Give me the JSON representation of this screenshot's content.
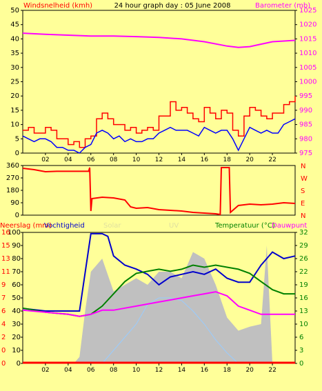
{
  "page_title": "24 hour graph day : 05 June 2008",
  "colors": {
    "background": "#FFFF99",
    "frame": "#000000",
    "wind_label": "#FF0000",
    "barometer": "#FF00FF",
    "wind_gust": "#FF0000",
    "wind_avg": "#0000FF",
    "wind_dir": "#FF0000",
    "solar_fill": "#C0C0C0",
    "uv": "#99CCFF",
    "humidity": "#0000CC",
    "temperature": "#008000",
    "dewpoint": "#FF00FF",
    "rain": "#FF0000",
    "temp_axis": "#008000",
    "humidity_label": "#0000CC"
  },
  "chart_data": [
    {
      "id": "wind-barometer",
      "type": "line",
      "title": "24 hour graph day : 05 June 2008",
      "left_axis_label": "Windsnelheid (kmh)",
      "right_axis_label": "Barometer (mb)",
      "x_tick_labels": [
        "02",
        "04",
        "06",
        "08",
        "10",
        "12",
        "14",
        "16",
        "18",
        "20",
        "22"
      ],
      "left_ylim": [
        0,
        50
      ],
      "left_ticks": [
        "0",
        "5",
        "10",
        "15",
        "20",
        "25",
        "30",
        "35",
        "40",
        "45",
        "50"
      ],
      "right_ylim": [
        975,
        1025
      ],
      "right_ticks": [
        "975",
        "980",
        "985",
        "990",
        "995",
        "1000",
        "1005",
        "1010",
        "1015",
        "1020",
        "1025"
      ],
      "series": [
        {
          "name": "Barometer (mb)",
          "axis": "right",
          "hours": [
            0,
            2,
            4,
            6,
            8,
            10,
            12,
            14,
            16,
            18,
            19,
            20,
            22,
            24
          ],
          "values": [
            1017,
            1016.6,
            1016.3,
            1016,
            1016,
            1015.8,
            1015.5,
            1015,
            1014,
            1012.5,
            1012,
            1012.3,
            1014,
            1014.5
          ]
        },
        {
          "name": "wind gust",
          "axis": "left",
          "hours": [
            0,
            0.5,
            1,
            1.5,
            2,
            2.5,
            3,
            3.5,
            4,
            4.5,
            5,
            5.5,
            6,
            6.5,
            7,
            7.5,
            8,
            8.5,
            9,
            9.5,
            10,
            10.5,
            11,
            11.5,
            12,
            12.5,
            13,
            13.5,
            14,
            14.5,
            15,
            15.5,
            16,
            16.5,
            17,
            17.5,
            18,
            18.5,
            19,
            19.5,
            20,
            20.5,
            21,
            21.5,
            22,
            22.5,
            23,
            23.5,
            24
          ],
          "values": [
            8,
            9,
            7,
            7,
            9,
            8,
            5,
            5,
            3,
            4,
            2,
            5,
            6,
            12,
            14,
            12,
            10,
            10,
            8,
            9,
            7,
            8,
            9,
            8,
            13,
            13,
            18,
            15,
            16,
            14,
            12,
            11,
            16,
            14,
            12,
            15,
            14,
            8,
            6,
            13,
            16,
            15,
            13,
            12,
            14,
            14,
            17,
            18,
            20
          ]
        },
        {
          "name": "wind average",
          "axis": "left",
          "hours": [
            0,
            0.5,
            1,
            1.5,
            2,
            2.5,
            3,
            3.5,
            4,
            4.5,
            5,
            5.5,
            6,
            6.5,
            7,
            7.5,
            8,
            8.5,
            9,
            9.5,
            10,
            10.5,
            11,
            11.5,
            12,
            12.5,
            13,
            13.5,
            14,
            14.5,
            15,
            15.5,
            16,
            16.5,
            17,
            17.5,
            18,
            18.5,
            19,
            19.5,
            20,
            20.5,
            21,
            21.5,
            22,
            22.5,
            23,
            23.5,
            24
          ],
          "values": [
            6,
            5,
            4,
            5,
            5,
            4,
            2,
            2,
            1,
            1,
            0,
            2,
            3,
            7,
            8,
            7,
            5,
            6,
            4,
            5,
            4,
            4,
            5,
            5,
            7,
            8,
            9,
            8,
            8,
            8,
            7,
            6,
            9,
            8,
            7,
            8,
            8,
            5,
            1,
            5,
            9,
            8,
            7,
            8,
            7,
            7,
            10,
            11,
            12
          ]
        }
      ]
    },
    {
      "id": "wind-direction",
      "type": "line",
      "left_ticks": [
        "0",
        "90",
        "180",
        "270",
        "360"
      ],
      "left_ylim": [
        0,
        360
      ],
      "right_labels": [
        "N",
        "W",
        "S",
        "E",
        "N"
      ],
      "series": [
        {
          "name": "wind direction",
          "hours": [
            0,
            1,
            2,
            3,
            4,
            5,
            5.8,
            5.9,
            6.0,
            6.1,
            7,
            8,
            9,
            9.5,
            10,
            11,
            12,
            13,
            14,
            15,
            16,
            17,
            17.4,
            17.5,
            18.2,
            18.3,
            19,
            20,
            21,
            22,
            23,
            24
          ],
          "values": [
            340,
            330,
            315,
            318,
            318,
            318,
            318,
            345,
            30,
            120,
            130,
            125,
            110,
            60,
            50,
            55,
            40,
            35,
            30,
            20,
            15,
            10,
            5,
            345,
            345,
            20,
            70,
            80,
            75,
            80,
            90,
            85
          ]
        }
      ]
    },
    {
      "id": "temp-humidity",
      "type": "line",
      "left_axis_label_1": "Neerslag (mm)",
      "left_axis_label_2": "Vochtigheid",
      "center_label_1": "Solar",
      "center_label_2": "UV",
      "right_axis_label_1": "Temperatuur (°C)",
      "right_axis_label_2": "Dauwpunt",
      "left_ticks_outer": [
        "0",
        "0",
        "2",
        "4",
        "6",
        "7",
        "9",
        "11",
        "13",
        "15",
        "16"
      ],
      "left_ticks_inner": [
        "0",
        "10",
        "20",
        "30",
        "40",
        "50",
        "60",
        "70",
        "80",
        "90",
        "100"
      ],
      "humidity_ylim": [
        0,
        100
      ],
      "right_ticks": [
        "0",
        "3",
        "6",
        "10",
        "13",
        "16",
        "19",
        "22",
        "26",
        "29",
        "32"
      ],
      "temp_ylim": [
        0,
        32
      ],
      "series": [
        {
          "name": "Vochtigheid",
          "axis": "left",
          "hours": [
            0,
            2,
            4,
            5,
            6,
            7,
            7.5,
            8,
            9,
            10,
            11,
            12,
            13,
            14,
            15,
            16,
            17,
            18,
            19,
            20,
            21,
            22,
            23,
            24
          ],
          "values": [
            42,
            40,
            40,
            40,
            99,
            99,
            97,
            82,
            75,
            72,
            68,
            60,
            66,
            68,
            70,
            68,
            72,
            65,
            62,
            62,
            75,
            85,
            80,
            82
          ]
        },
        {
          "name": "Temperatuur",
          "axis": "right",
          "hours": [
            0,
            2,
            4,
            5,
            6,
            7,
            8,
            9,
            10,
            11,
            12,
            13,
            14,
            15,
            16,
            17,
            18,
            19,
            20,
            21,
            22,
            23,
            24
          ],
          "values": [
            13.5,
            12.5,
            12,
            11.5,
            12,
            14,
            17,
            20,
            22,
            22.5,
            23,
            22.5,
            23,
            24,
            23.5,
            24,
            23.5,
            23,
            22,
            20,
            18,
            17,
            17
          ]
        },
        {
          "name": "Dauwpunt",
          "axis": "right",
          "hours": [
            0,
            2,
            4,
            5,
            6,
            7,
            8,
            9,
            10,
            11,
            12,
            13,
            14,
            15,
            16,
            17,
            18,
            19,
            20,
            21,
            22,
            23,
            24
          ],
          "values": [
            13,
            12.5,
            12,
            11.5,
            12,
            13,
            13,
            13.5,
            14,
            14.5,
            15,
            15.5,
            16,
            16.5,
            17,
            17.5,
            16.5,
            14,
            13,
            12,
            12,
            12,
            12
          ]
        },
        {
          "name": "Solar",
          "axis": "left",
          "hours": [
            0,
            4.5,
            5,
            5.5,
            6,
            7,
            8,
            9,
            10,
            11,
            12,
            13,
            14,
            15,
            16,
            17,
            18,
            19,
            20,
            21,
            21.5,
            22,
            24
          ],
          "values": [
            0,
            0,
            5,
            40,
            70,
            80,
            55,
            60,
            65,
            60,
            70,
            70,
            65,
            85,
            80,
            60,
            35,
            25,
            28,
            30,
            90,
            0,
            0
          ]
        },
        {
          "name": "UV",
          "axis": "left",
          "hours": [
            0,
            7,
            8,
            9,
            10,
            11,
            12,
            13,
            14,
            15,
            16,
            17,
            18,
            19,
            24
          ],
          "values": [
            0,
            0,
            10,
            20,
            30,
            45,
            50,
            50,
            48,
            40,
            30,
            18,
            8,
            0,
            0
          ]
        },
        {
          "name": "Neerslag",
          "axis": "left",
          "hours": [
            0,
            24
          ],
          "values": [
            0.5,
            0.5
          ]
        }
      ]
    }
  ]
}
